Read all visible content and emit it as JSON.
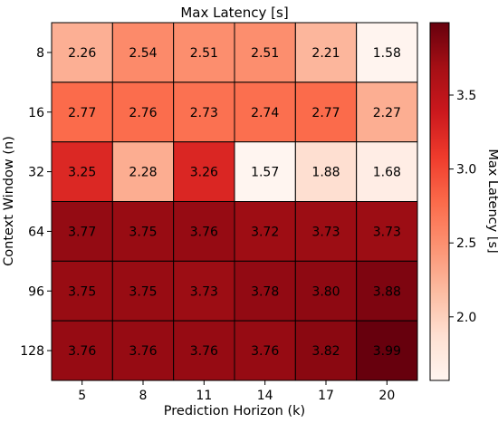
{
  "chart_data": {
    "type": "heatmap",
    "title": "Max Latency [s]",
    "xlabel": "Prediction Horizon (k)",
    "ylabel": "Context Window (n)",
    "x_categories": [
      "5",
      "8",
      "11",
      "14",
      "17",
      "20"
    ],
    "y_categories": [
      "8",
      "16",
      "32",
      "64",
      "96",
      "128"
    ],
    "values": [
      [
        2.26,
        2.54,
        2.51,
        2.51,
        2.21,
        1.58
      ],
      [
        2.77,
        2.76,
        2.73,
        2.74,
        2.77,
        2.27
      ],
      [
        3.25,
        2.28,
        3.26,
        1.57,
        1.88,
        1.68
      ],
      [
        3.77,
        3.75,
        3.76,
        3.72,
        3.73,
        3.73
      ],
      [
        3.75,
        3.75,
        3.73,
        3.78,
        3.8,
        3.88
      ],
      [
        3.76,
        3.76,
        3.76,
        3.76,
        3.82,
        3.99
      ]
    ],
    "value_labels": [
      [
        "2.26",
        "2.54",
        "2.51",
        "2.51",
        "2.21",
        "1.58"
      ],
      [
        "2.77",
        "2.76",
        "2.73",
        "2.74",
        "2.77",
        "2.27"
      ],
      [
        "3.25",
        "2.28",
        "3.26",
        "1.57",
        "1.88",
        "1.68"
      ],
      [
        "3.77",
        "3.75",
        "3.76",
        "3.72",
        "3.73",
        "3.73"
      ],
      [
        "3.75",
        "3.75",
        "3.73",
        "3.78",
        "3.80",
        "3.88"
      ],
      [
        "3.76",
        "3.76",
        "3.76",
        "3.76",
        "3.82",
        "3.99"
      ]
    ],
    "colorbar": {
      "label": "Max Latency [s]",
      "colormap": "Reds",
      "vmin": 1.57,
      "vmax": 3.99,
      "ticks": [
        "2.0",
        "2.5",
        "3.0",
        "3.5"
      ]
    },
    "grid": false
  }
}
